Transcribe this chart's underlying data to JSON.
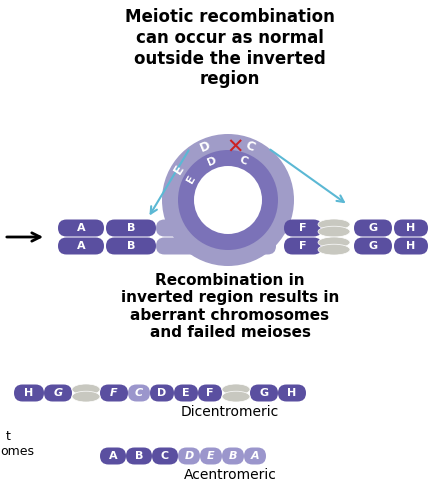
{
  "title1": "Meiotic recombination\ncan occur as normal\noutside the inverted\nregion",
  "title2": "Recombination in\ninverted region results in\naberrant chromosomes\nand failed meioses",
  "label_dicentromeric": "Dicentromeric",
  "label_acentromeric": "Acentromeric",
  "bg_color": "#ffffff",
  "chrom_color_dark": "#5a4fa0",
  "chrom_color_mid": "#7b72b8",
  "chrom_color_light": "#a09cc8",
  "chrom_color_inv": "#9b96cc",
  "centromere_color": "#c8c8c0",
  "arrow_color": "#5bb8d4",
  "xmark_color": "#cc2222",
  "text_color": "#ffffff"
}
